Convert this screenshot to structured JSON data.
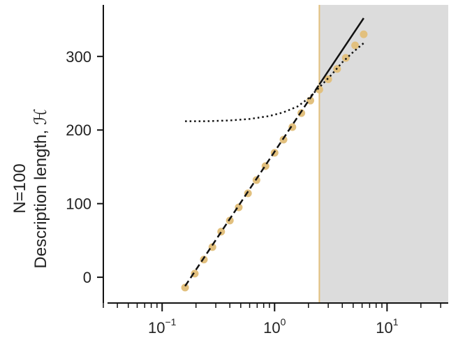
{
  "chart_data": {
    "type": "scatter",
    "title": "",
    "ylabel_lines": [
      "N=100",
      "Description length, ℋ"
    ],
    "xlabel": "",
    "xscale": "log",
    "xlim": [
      0.03,
      35
    ],
    "ylim": [
      -35,
      370
    ],
    "yticks": [
      0,
      100,
      200,
      300
    ],
    "ytick_labels": [
      "0",
      "100",
      "200",
      "300"
    ],
    "xticks_major": [
      {
        "value": 0.1,
        "base": "10",
        "exp": "−1"
      },
      {
        "value": 1,
        "base": "10",
        "exp": "0"
      },
      {
        "value": 10,
        "base": "10",
        "exp": "1"
      }
    ],
    "threshold_x": 2.5,
    "shaded_region": {
      "from_x": 2.5,
      "color": "#dcdcdc"
    },
    "colors": {
      "points": "#e2c07e",
      "threshold": "#e2c07e",
      "lines": "#111111",
      "shade": "#dcdcdc"
    },
    "series": [
      {
        "style": "points",
        "x": [
          0.16,
          0.195,
          0.235,
          0.28,
          0.335,
          0.4,
          0.48,
          0.58,
          0.69,
          0.83,
          1.0,
          1.2,
          1.44,
          1.73,
          2.08,
          2.5,
          3.0,
          3.6,
          4.3,
          5.2,
          6.2
        ],
        "y": [
          -14,
          5,
          24,
          41,
          62,
          77,
          95,
          114,
          132,
          151,
          169,
          187,
          204,
          223,
          240,
          255,
          269,
          283,
          298,
          315,
          330
        ]
      },
      {
        "style": "dashed",
        "x": [
          0.16,
          2.5
        ],
        "y": [
          -12,
          262
        ]
      },
      {
        "style": "solid",
        "x": [
          2.5,
          6.2
        ],
        "y": [
          262,
          352
        ]
      },
      {
        "style": "dotted",
        "x": [
          0.16,
          0.25,
          0.4,
          0.6,
          0.9,
          1.2,
          1.6,
          2.0,
          2.5,
          3.2,
          4.0,
          5.0,
          6.2
        ],
        "y": [
          212,
          212,
          213,
          215,
          219,
          224,
          232,
          243,
          258,
          275,
          292,
          306,
          318
        ]
      }
    ]
  }
}
